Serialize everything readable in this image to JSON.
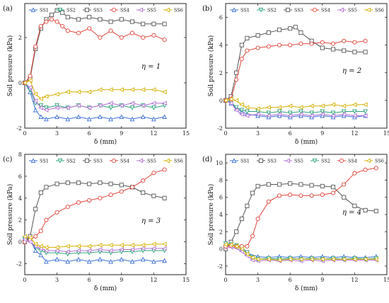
{
  "panels": [
    {
      "label": "(a)",
      "eta_label": "η = 1",
      "xlabel": "δ (mm)",
      "ylabel": "Soil pressure (kPa)",
      "xlim": [
        0,
        15
      ],
      "ylim": [
        -2,
        3.5
      ],
      "xticks": [
        0,
        3,
        6,
        9,
        12,
        15
      ],
      "yticks": [
        -2,
        0,
        2
      ],
      "legend": [
        "SS1",
        "SS2",
        "SS3",
        "SS4",
        "SS5",
        "SS6"
      ]
    },
    {
      "label": "(b)",
      "eta_label": "η = 2",
      "xlabel": "δ (mm)",
      "ylabel": "Soil pressure (kPa)",
      "xlim": [
        0,
        15
      ],
      "ylim": [
        -2,
        7
      ],
      "xticks": [
        0,
        3,
        6,
        9,
        12,
        15
      ],
      "yticks": [
        -2,
        0,
        2,
        4,
        6
      ],
      "legend": [
        "SS1",
        "SS2",
        "SS3",
        "SS4",
        "SS5",
        "SS6"
      ]
    },
    {
      "label": "(c)",
      "eta_label": "η = 3",
      "xlabel": "δ (mm)",
      "ylabel": "Soil pressure (kPa)",
      "xlim": [
        0,
        15
      ],
      "ylim": [
        -3,
        8
      ],
      "xticks": [
        0,
        3,
        6,
        9,
        12,
        15
      ],
      "yticks": [
        -2,
        0,
        2,
        4,
        6,
        8
      ],
      "legend": [
        "SS1",
        "SS2",
        "SS3",
        "SS4",
        "SS5",
        "SS6"
      ]
    },
    {
      "label": "(d)",
      "eta_label": "η = 4",
      "xlabel": "δ (mm)",
      "ylabel": "Soil pressure (kPa)",
      "xlim": [
        0,
        15
      ],
      "ylim": [
        -3,
        11
      ],
      "xticks": [
        0,
        3,
        6,
        9,
        12,
        15
      ],
      "yticks": [
        -2,
        0,
        2,
        4,
        6,
        8,
        10
      ],
      "legend": [
        "SS1",
        "SS3",
        "SS5",
        "SS2",
        "SS4",
        "SS6"
      ]
    }
  ],
  "series_colors": {
    "SS1": "#3a6fd8",
    "SS2": "#2aa37a",
    "SS3": "#555555",
    "SS4": "#e0453a",
    "SS5": "#b26fd6",
    "SS6": "#d6b000"
  },
  "series_markers": {
    "SS1": "triangle-up",
    "SS2": "triangle-down",
    "SS3": "square",
    "SS4": "circle",
    "SS5": "triangle-left",
    "SS6": "triangle-left"
  },
  "chart_data": [
    {
      "type": "line",
      "series": [
        {
          "name": "SS1",
          "x": [
            0,
            0.5,
            1,
            1.5,
            2,
            3,
            4,
            5,
            6,
            7,
            8,
            9,
            10,
            11,
            12,
            13
          ],
          "y": [
            0,
            -0.4,
            -1.2,
            -1.5,
            -1.6,
            -1.5,
            -1.6,
            -1.5,
            -1.6,
            -1.5,
            -1.6,
            -1.5,
            -1.6,
            -1.5,
            -1.6,
            -1.5
          ]
        },
        {
          "name": "SS2",
          "x": [
            0,
            0.5,
            1,
            1.5,
            2,
            3,
            4,
            5,
            6,
            7,
            8,
            9,
            10,
            11,
            12,
            13
          ],
          "y": [
            0,
            -0.3,
            -0.9,
            -1.0,
            -1.1,
            -1.0,
            -1.1,
            -1.0,
            -1.1,
            -1.0,
            -1.1,
            -1.0,
            -1.1,
            -1.0,
            -1.1,
            -1.0
          ]
        },
        {
          "name": "SS3",
          "x": [
            0,
            0.5,
            1,
            1.5,
            2,
            2.5,
            3,
            3.5,
            4,
            5,
            6,
            7,
            8,
            9,
            10,
            11,
            12,
            13
          ],
          "y": [
            0,
            0.2,
            1.5,
            2.4,
            2.8,
            3.0,
            3.2,
            3.1,
            2.9,
            2.8,
            2.9,
            2.8,
            2.7,
            2.8,
            2.7,
            2.6,
            2.6,
            2.6
          ]
        },
        {
          "name": "SS4",
          "x": [
            0,
            0.5,
            1,
            1.5,
            2,
            2.5,
            3,
            3.5,
            4,
            5,
            6,
            7,
            8,
            9,
            10,
            11,
            12,
            13
          ],
          "y": [
            0,
            0.3,
            1.6,
            2.5,
            2.7,
            2.8,
            2.7,
            2.5,
            2.3,
            2.2,
            2.4,
            2.0,
            2.3,
            2.0,
            2.2,
            2.0,
            2.1,
            1.9
          ]
        },
        {
          "name": "SS5",
          "x": [
            0,
            0.5,
            1,
            1.5,
            2,
            3,
            4,
            5,
            6,
            7,
            8,
            9,
            10,
            11,
            12,
            13
          ],
          "y": [
            0,
            -0.2,
            -0.8,
            -1.1,
            -1.2,
            -1.1,
            -1.1,
            -1.0,
            -1.1,
            -1.0,
            -0.9,
            -1.0,
            -0.9,
            -1.0,
            -0.9,
            -0.9
          ]
        },
        {
          "name": "SS6",
          "x": [
            0,
            0.5,
            1,
            1.5,
            2,
            3,
            4,
            5,
            6,
            7,
            8,
            9,
            10,
            11,
            12,
            13
          ],
          "y": [
            0,
            0.1,
            -0.5,
            -0.7,
            -0.6,
            -0.5,
            -0.4,
            -0.4,
            -0.4,
            -0.3,
            -0.3,
            -0.3,
            -0.3,
            -0.3,
            -0.3,
            -0.4
          ]
        }
      ]
    },
    {
      "type": "line",
      "series": [
        {
          "name": "SS1",
          "x": [
            0,
            0.5,
            1,
            1.5,
            2,
            3,
            4,
            5,
            6,
            7,
            8,
            9,
            10,
            11,
            12,
            13
          ],
          "y": [
            0,
            -0.2,
            -0.6,
            -0.8,
            -1.0,
            -1.1,
            -1.2,
            -1.1,
            -1.2,
            -1.1,
            -1.2,
            -1.1,
            -1.2,
            -1.1,
            -1.2,
            -1.1
          ]
        },
        {
          "name": "SS2",
          "x": [
            0,
            0.5,
            1,
            1.5,
            2,
            3,
            4,
            5,
            6,
            7,
            8,
            9,
            10,
            11,
            12,
            13
          ],
          "y": [
            0,
            -0.1,
            -0.5,
            -0.7,
            -0.8,
            -0.8,
            -0.9,
            -0.8,
            -0.9,
            -0.8,
            -0.9,
            -0.8,
            -0.9,
            -0.8,
            -0.8,
            -0.8
          ]
        },
        {
          "name": "SS3",
          "x": [
            0,
            0.5,
            1,
            1.5,
            2,
            3,
            4,
            5,
            6,
            6.5,
            7,
            8,
            9,
            10,
            11,
            12,
            13
          ],
          "y": [
            0,
            0.3,
            2.0,
            4.0,
            4.5,
            4.7,
            4.9,
            5.1,
            5.2,
            5.3,
            4.9,
            4.3,
            3.8,
            3.7,
            3.6,
            3.5,
            3.5
          ]
        },
        {
          "name": "SS4",
          "x": [
            0,
            0.5,
            1,
            1.5,
            2,
            3,
            4,
            5,
            6,
            7,
            8,
            9,
            10,
            11,
            12,
            13
          ],
          "y": [
            0,
            0.1,
            1.5,
            3.0,
            3.6,
            3.8,
            3.9,
            4.0,
            4.0,
            4.1,
            4.1,
            4.2,
            4.1,
            4.3,
            4.2,
            4.3
          ]
        },
        {
          "name": "SS5",
          "x": [
            0,
            0.5,
            1,
            1.5,
            2,
            3,
            4,
            5,
            6,
            7,
            8,
            9,
            10,
            11,
            12,
            13
          ],
          "y": [
            0,
            -0.2,
            -0.7,
            -1.0,
            -1.1,
            -1.0,
            -1.1,
            -1.0,
            -1.1,
            -1.0,
            -1.1,
            -1.0,
            -1.1,
            -1.0,
            -1.1,
            -1.1
          ]
        },
        {
          "name": "SS6",
          "x": [
            0,
            0.5,
            1,
            1.5,
            2,
            3,
            4,
            5,
            6,
            7,
            8,
            9,
            10,
            11,
            12,
            13
          ],
          "y": [
            0,
            0.1,
            0.0,
            -0.3,
            -0.5,
            -0.6,
            -0.5,
            -0.5,
            -0.4,
            -0.5,
            -0.4,
            -0.4,
            -0.3,
            -0.4,
            -0.3,
            -0.3
          ]
        }
      ]
    },
    {
      "type": "line",
      "series": [
        {
          "name": "SS1",
          "x": [
            0,
            0.5,
            1,
            1.5,
            2,
            3,
            4,
            5,
            6,
            7,
            8,
            9,
            10,
            11,
            12,
            13
          ],
          "y": [
            0.5,
            0.2,
            -0.8,
            -1.2,
            -1.8,
            -1.6,
            -1.8,
            -1.6,
            -1.8,
            -1.6,
            -1.8,
            -1.6,
            -1.8,
            -1.6,
            -1.8,
            -1.7
          ]
        },
        {
          "name": "SS2",
          "x": [
            0,
            0.5,
            1,
            1.5,
            2,
            3,
            4,
            5,
            6,
            7,
            8,
            9,
            10,
            11,
            12,
            13
          ],
          "y": [
            0.3,
            0.1,
            -0.5,
            -0.8,
            -1.0,
            -1.0,
            -1.1,
            -1.0,
            -1.0,
            -0.9,
            -1.0,
            -0.9,
            -0.9,
            -0.8,
            -0.8,
            -0.8
          ]
        },
        {
          "name": "SS3",
          "x": [
            0,
            0.5,
            1,
            1.5,
            2,
            3,
            4,
            5,
            6,
            7,
            8,
            9,
            10,
            11,
            12,
            13
          ],
          "y": [
            0,
            0.5,
            3.0,
            4.5,
            5.0,
            5.3,
            5.4,
            5.4,
            5.3,
            5.4,
            5.3,
            5.2,
            5.0,
            4.5,
            4.2,
            4.0
          ]
        },
        {
          "name": "SS4",
          "x": [
            0,
            0.5,
            1,
            1.5,
            2,
            3,
            4,
            5,
            6,
            7,
            8,
            9,
            10,
            11,
            12,
            13
          ],
          "y": [
            0,
            0.2,
            0.5,
            1.0,
            2.0,
            2.7,
            3.2,
            3.6,
            3.8,
            4.0,
            4.3,
            4.6,
            5.0,
            5.6,
            6.3,
            6.6
          ]
        },
        {
          "name": "SS5",
          "x": [
            0,
            0.5,
            1,
            1.5,
            2,
            3,
            4,
            5,
            6,
            7,
            8,
            9,
            10,
            11,
            12,
            13
          ],
          "y": [
            0.2,
            0.0,
            -0.4,
            -0.6,
            -0.8,
            -0.8,
            -0.9,
            -0.8,
            -0.8,
            -0.7,
            -0.8,
            -0.7,
            -0.7,
            -0.6,
            -0.6,
            -0.6
          ]
        },
        {
          "name": "SS6",
          "x": [
            0,
            0.5,
            1,
            1.5,
            2,
            3,
            4,
            5,
            6,
            7,
            8,
            9,
            10,
            11,
            12,
            13
          ],
          "y": [
            0.5,
            0.4,
            -0.2,
            -0.4,
            -0.5,
            -0.5,
            -0.4,
            -0.4,
            -0.4,
            -0.3,
            -0.3,
            -0.3,
            -0.3,
            -0.3,
            -0.2,
            -0.2
          ]
        }
      ]
    },
    {
      "type": "line",
      "series": [
        {
          "name": "SS1",
          "x": [
            0,
            0.5,
            1,
            1.5,
            2,
            3,
            4,
            5,
            6,
            7,
            8,
            9,
            10,
            11,
            12,
            13,
            14
          ],
          "y": [
            0.5,
            0.4,
            0.3,
            0,
            -0.5,
            -0.9,
            -1.0,
            -0.9,
            -1.0,
            -0.9,
            -1.0,
            -0.9,
            -1.0,
            -0.9,
            -1.0,
            -1.0,
            -0.9
          ]
        },
        {
          "name": "SS3",
          "x": [
            0,
            0.5,
            1,
            1.5,
            2,
            2.5,
            3,
            4,
            5,
            6,
            7,
            8,
            9,
            10,
            11,
            12,
            13,
            14
          ],
          "y": [
            0,
            0.8,
            2.0,
            3.5,
            5.0,
            6.5,
            7.3,
            7.5,
            7.5,
            7.6,
            7.5,
            7.4,
            7.3,
            7.2,
            6.0,
            5.0,
            4.5,
            4.4
          ]
        },
        {
          "name": "SS5",
          "x": [
            0,
            0.5,
            1,
            1.5,
            2,
            2.5,
            3,
            4,
            5,
            6,
            7,
            8,
            9,
            10,
            11,
            12,
            13,
            14
          ],
          "y": [
            0.2,
            0.2,
            0.1,
            -0.3,
            -0.8,
            -1.3,
            -1.4,
            -1.3,
            -1.4,
            -1.3,
            -1.4,
            -1.3,
            -1.4,
            -1.3,
            -1.3,
            -1.3,
            -1.3,
            -1.3
          ]
        },
        {
          "name": "SS2",
          "x": [
            0,
            0.5,
            1,
            1.5,
            2,
            2.5,
            3,
            4,
            5,
            6,
            7,
            8,
            9,
            10,
            11,
            12,
            13,
            14
          ],
          "y": [
            0.6,
            0.5,
            0.4,
            0.2,
            -0.4,
            -1.0,
            -1.2,
            -1.1,
            -1.2,
            -1.1,
            -1.2,
            -1.1,
            -1.2,
            -1.1,
            -1.2,
            -1.1,
            -1.2,
            -1.1
          ]
        },
        {
          "name": "SS4",
          "x": [
            0,
            0.5,
            1,
            1.5,
            2,
            2.5,
            3,
            4,
            5,
            6,
            7,
            8,
            9,
            10,
            11,
            12,
            13,
            14
          ],
          "y": [
            0.3,
            0.4,
            0.3,
            0.3,
            0.3,
            1.5,
            3.5,
            5.5,
            6.2,
            6.3,
            6.2,
            6.2,
            6.3,
            6.5,
            7.5,
            8.8,
            9.2,
            9.4
          ]
        },
        {
          "name": "SS6",
          "x": [
            0,
            0.5,
            1,
            1.5,
            2,
            2.5,
            3,
            4,
            5,
            6,
            7,
            8,
            9,
            10,
            11,
            12,
            13,
            14
          ],
          "y": [
            0.5,
            0.5,
            0.3,
            0.0,
            -0.6,
            -1.0,
            -1.2,
            -1.2,
            -1.3,
            -1.2,
            -1.2,
            -1.2,
            -1.2,
            -1.2,
            -1.2,
            -1.2,
            -1.2,
            -1.2
          ]
        }
      ]
    }
  ]
}
